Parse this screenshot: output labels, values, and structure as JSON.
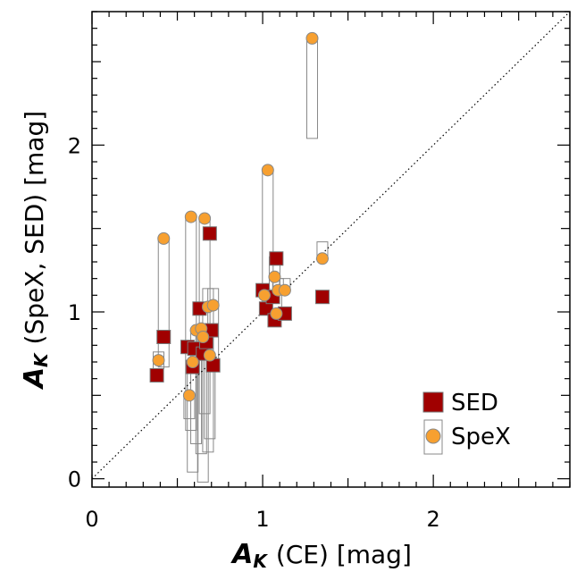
{
  "chart_data": {
    "type": "scatter",
    "xlabel": {
      "symbol": "A",
      "subscript": "K",
      "text": "(CE)  [mag]"
    },
    "ylabel": {
      "symbol": "A",
      "subscript": "K",
      "text": "(SpeX,  SED)  [mag]"
    },
    "xlim": [
      0,
      2.8
    ],
    "ylim": [
      -0.05,
      2.8
    ],
    "x_ticks": [
      "0",
      "1",
      "2"
    ],
    "y_ticks": [
      "0",
      "1",
      "2"
    ],
    "reference_line": "y = x (dotted)",
    "legend": {
      "position": "bottom-right",
      "entries": [
        "SED",
        "SpeX"
      ]
    },
    "colors": {
      "SED": "#a00000",
      "SpeX": "#f7a030",
      "range_box": "#888888"
    },
    "series": [
      {
        "name": "SED",
        "marker": "square",
        "points": [
          {
            "x": 0.38,
            "y": 0.62
          },
          {
            "x": 0.42,
            "y": 0.85
          },
          {
            "x": 0.56,
            "y": 0.79
          },
          {
            "x": 0.59,
            "y": 0.67
          },
          {
            "x": 0.6,
            "y": 0.78
          },
          {
            "x": 0.63,
            "y": 1.02
          },
          {
            "x": 0.65,
            "y": 0.75
          },
          {
            "x": 0.67,
            "y": 0.82
          },
          {
            "x": 0.69,
            "y": 1.47
          },
          {
            "x": 0.7,
            "y": 0.89
          },
          {
            "x": 0.71,
            "y": 0.68
          },
          {
            "x": 1.0,
            "y": 1.13
          },
          {
            "x": 1.02,
            "y": 1.02
          },
          {
            "x": 1.06,
            "y": 1.09
          },
          {
            "x": 1.07,
            "y": 0.95
          },
          {
            "x": 1.08,
            "y": 1.32
          },
          {
            "x": 1.13,
            "y": 0.99
          },
          {
            "x": 1.35,
            "y": 1.09
          }
        ]
      },
      {
        "name": "SpeX",
        "marker": "circle",
        "points": [
          {
            "x": 0.39,
            "y": 0.71,
            "range": [
              0.66,
              0.76
            ]
          },
          {
            "x": 0.42,
            "y": 1.44,
            "range": [
              0.67,
              1.44
            ]
          },
          {
            "x": 0.57,
            "y": 0.5,
            "range": [
              0.36,
              0.5
            ]
          },
          {
            "x": 0.58,
            "y": 1.57,
            "range": [
              0.29,
              1.57
            ]
          },
          {
            "x": 0.59,
            "y": 0.7,
            "range": [
              0.04,
              0.7
            ]
          },
          {
            "x": 0.61,
            "y": 0.89,
            "range": [
              0.21,
              0.89
            ]
          },
          {
            "x": 0.64,
            "y": 0.9,
            "range": [
              0.15,
              0.9
            ]
          },
          {
            "x": 0.65,
            "y": 0.85,
            "range": [
              -0.02,
              0.85
            ]
          },
          {
            "x": 0.66,
            "y": 1.56,
            "range": [
              0.39,
              1.56
            ]
          },
          {
            "x": 0.68,
            "y": 1.03,
            "range": [
              0.16,
              1.14
            ]
          },
          {
            "x": 0.69,
            "y": 0.74,
            "range": [
              0.24,
              0.74
            ]
          },
          {
            "x": 0.71,
            "y": 1.04,
            "range": [
              0.71,
              1.14
            ]
          },
          {
            "x": 1.01,
            "y": 1.1,
            "range": [
              1.1,
              1.14
            ]
          },
          {
            "x": 1.03,
            "y": 1.85,
            "range": [
              1.06,
              1.85
            ]
          },
          {
            "x": 1.07,
            "y": 1.21,
            "range": [
              1.13,
              1.33
            ]
          },
          {
            "x": 1.08,
            "y": 0.99,
            "range": [
              0.99,
              1.13
            ]
          },
          {
            "x": 1.09,
            "y": 1.13,
            "range": [
              1.13,
              1.2
            ]
          },
          {
            "x": 1.13,
            "y": 1.13,
            "range": [
              1.13,
              1.2
            ]
          },
          {
            "x": 1.29,
            "y": 2.64,
            "range": [
              2.04,
              2.64
            ]
          },
          {
            "x": 1.35,
            "y": 1.32,
            "range": [
              1.32,
              1.42
            ]
          }
        ]
      }
    ]
  }
}
